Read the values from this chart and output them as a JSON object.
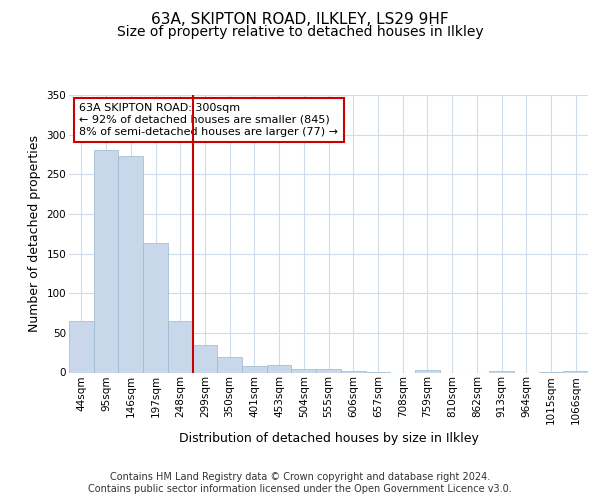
{
  "title": "63A, SKIPTON ROAD, ILKLEY, LS29 9HF",
  "subtitle": "Size of property relative to detached houses in Ilkley",
  "xlabel": "Distribution of detached houses by size in Ilkley",
  "ylabel": "Number of detached properties",
  "footer": "Contains HM Land Registry data © Crown copyright and database right 2024.\nContains public sector information licensed under the Open Government Licence v3.0.",
  "categories": [
    "44sqm",
    "95sqm",
    "146sqm",
    "197sqm",
    "248sqm",
    "299sqm",
    "350sqm",
    "401sqm",
    "453sqm",
    "504sqm",
    "555sqm",
    "606sqm",
    "657sqm",
    "708sqm",
    "759sqm",
    "810sqm",
    "862sqm",
    "913sqm",
    "964sqm",
    "1015sqm",
    "1066sqm"
  ],
  "values": [
    65,
    281,
    273,
    163,
    65,
    35,
    20,
    8,
    10,
    5,
    4,
    2,
    1,
    0,
    3,
    0,
    0,
    2,
    0,
    1,
    2
  ],
  "bar_color": "#c8d8ea",
  "bar_edge_color": "#9ab8d0",
  "highlight_line_index": 5,
  "highlight_line_color": "#cc0000",
  "annotation_text": "63A SKIPTON ROAD: 300sqm\n← 92% of detached houses are smaller (845)\n8% of semi-detached houses are larger (77) →",
  "annotation_box_color": "#cc0000",
  "ylim": [
    0,
    350
  ],
  "yticks": [
    0,
    50,
    100,
    150,
    200,
    250,
    300,
    350
  ],
  "background_color": "#ffffff",
  "plot_bg_color": "#ffffff",
  "grid_color": "#d0dce8",
  "title_fontsize": 11,
  "subtitle_fontsize": 10,
  "axis_label_fontsize": 9,
  "tick_fontsize": 7.5,
  "footer_fontsize": 7
}
